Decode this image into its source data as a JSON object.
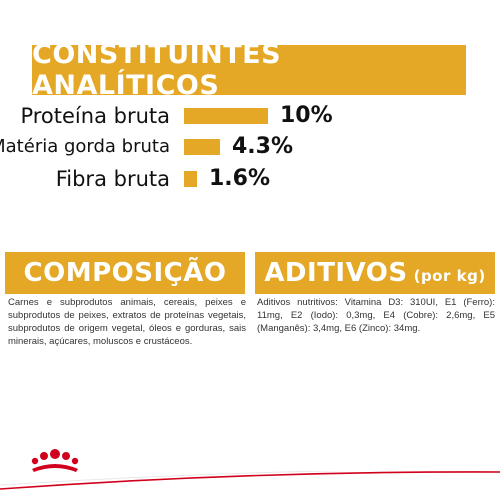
{
  "title": "CONSTITUINTES ANALÍTICOS",
  "nutrients": [
    {
      "label": "Proteína bruta",
      "value": "10%",
      "fraction": 0.1
    },
    {
      "label": "Matéria gorda bruta",
      "value": "4.3%",
      "fraction": 0.043
    },
    {
      "label": "Fibra bruta",
      "value": "1.6%",
      "fraction": 0.016
    }
  ],
  "composicao": {
    "heading": "COMPOSIÇÃO",
    "text": "Carnes e subprodutos animais, cereais, peixes e subprodutos de peixes, extratos de proteínas vegetais, subprodutos de origem vegetal, óleos e gorduras, sais minerais, açúcares, moluscos e crustáceos."
  },
  "aditivos": {
    "heading": "ADITIVOS",
    "heading_small": "(por kg)",
    "text": "Aditivos nutritivos: Vitamina D3: 310UI, E1 (Ferro): 11mg, E2 (Iodo): 0,3mg, E4 (Cobre): 2,6mg, E5 (Manganês): 3,4mg, E6 (Zinco): 34mg."
  },
  "colors": {
    "accent": "#e4a826",
    "brand_red": "#d1001c"
  },
  "icons": {
    "logo": "royal-canin-crown-icon"
  }
}
